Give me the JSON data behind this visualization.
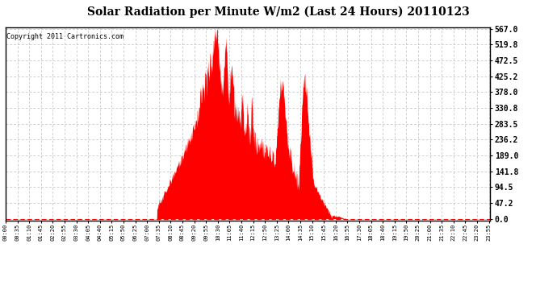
{
  "title": "Solar Radiation per Minute W/m2 (Last 24 Hours) 20110123",
  "copyright": "Copyright 2011 Cartronics.com",
  "fill_color": "#FF0000",
  "background_color": "#FFFFFF",
  "grid_color": "#BBBBBB",
  "ymin": 0.0,
  "ymax": 567.0,
  "yticks": [
    0.0,
    47.2,
    94.5,
    141.8,
    189.0,
    236.2,
    283.5,
    330.8,
    378.0,
    425.2,
    472.5,
    519.8,
    567.0
  ],
  "total_minutes": 1440,
  "tick_interval": 35
}
